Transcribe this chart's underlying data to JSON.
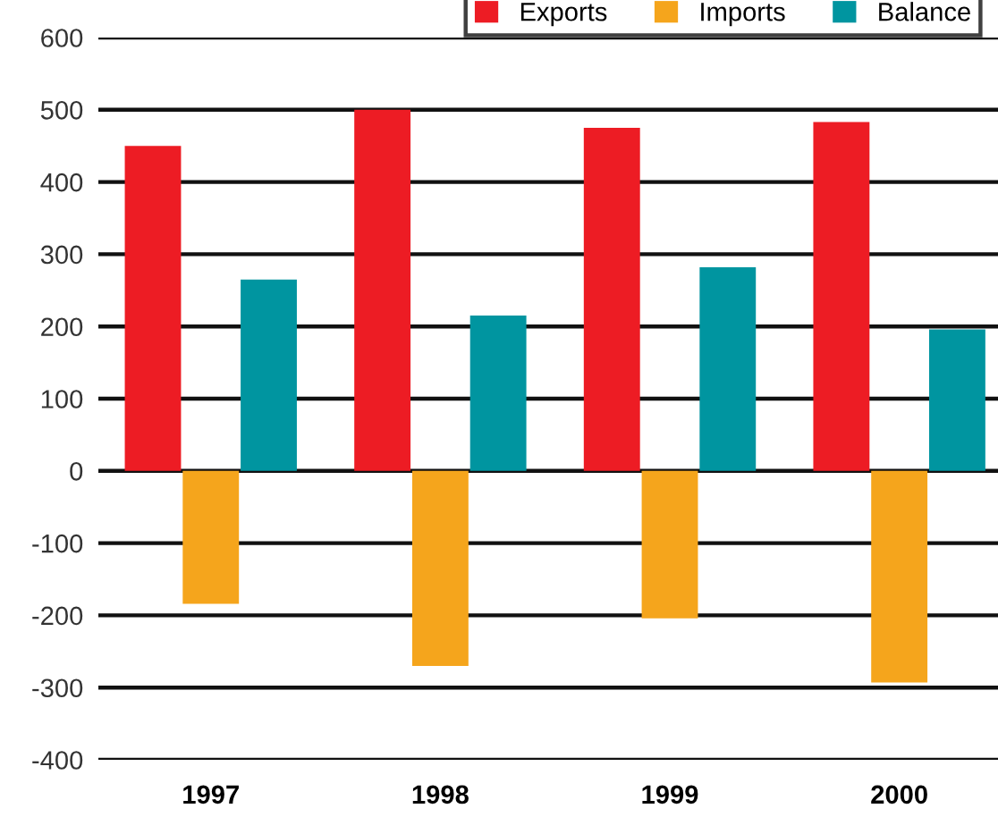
{
  "chart_data": {
    "type": "bar",
    "categories": [
      "1997",
      "1998",
      "1999",
      "2000"
    ],
    "series": [
      {
        "name": "Exports",
        "color": "#ed1c24",
        "values": [
          450,
          500,
          475,
          483
        ]
      },
      {
        "name": "Imports",
        "color": "#f5a51c",
        "values": [
          -184,
          -270,
          -204,
          -293
        ]
      },
      {
        "name": "Balance",
        "color": "#0095a0",
        "values": [
          265,
          215,
          282,
          196
        ]
      }
    ],
    "ylim": [
      -400,
      600
    ],
    "yticks": [
      -400,
      -300,
      -200,
      -100,
      0,
      100,
      200,
      300,
      400,
      500,
      600
    ],
    "grid": "y",
    "legend": "top right"
  }
}
